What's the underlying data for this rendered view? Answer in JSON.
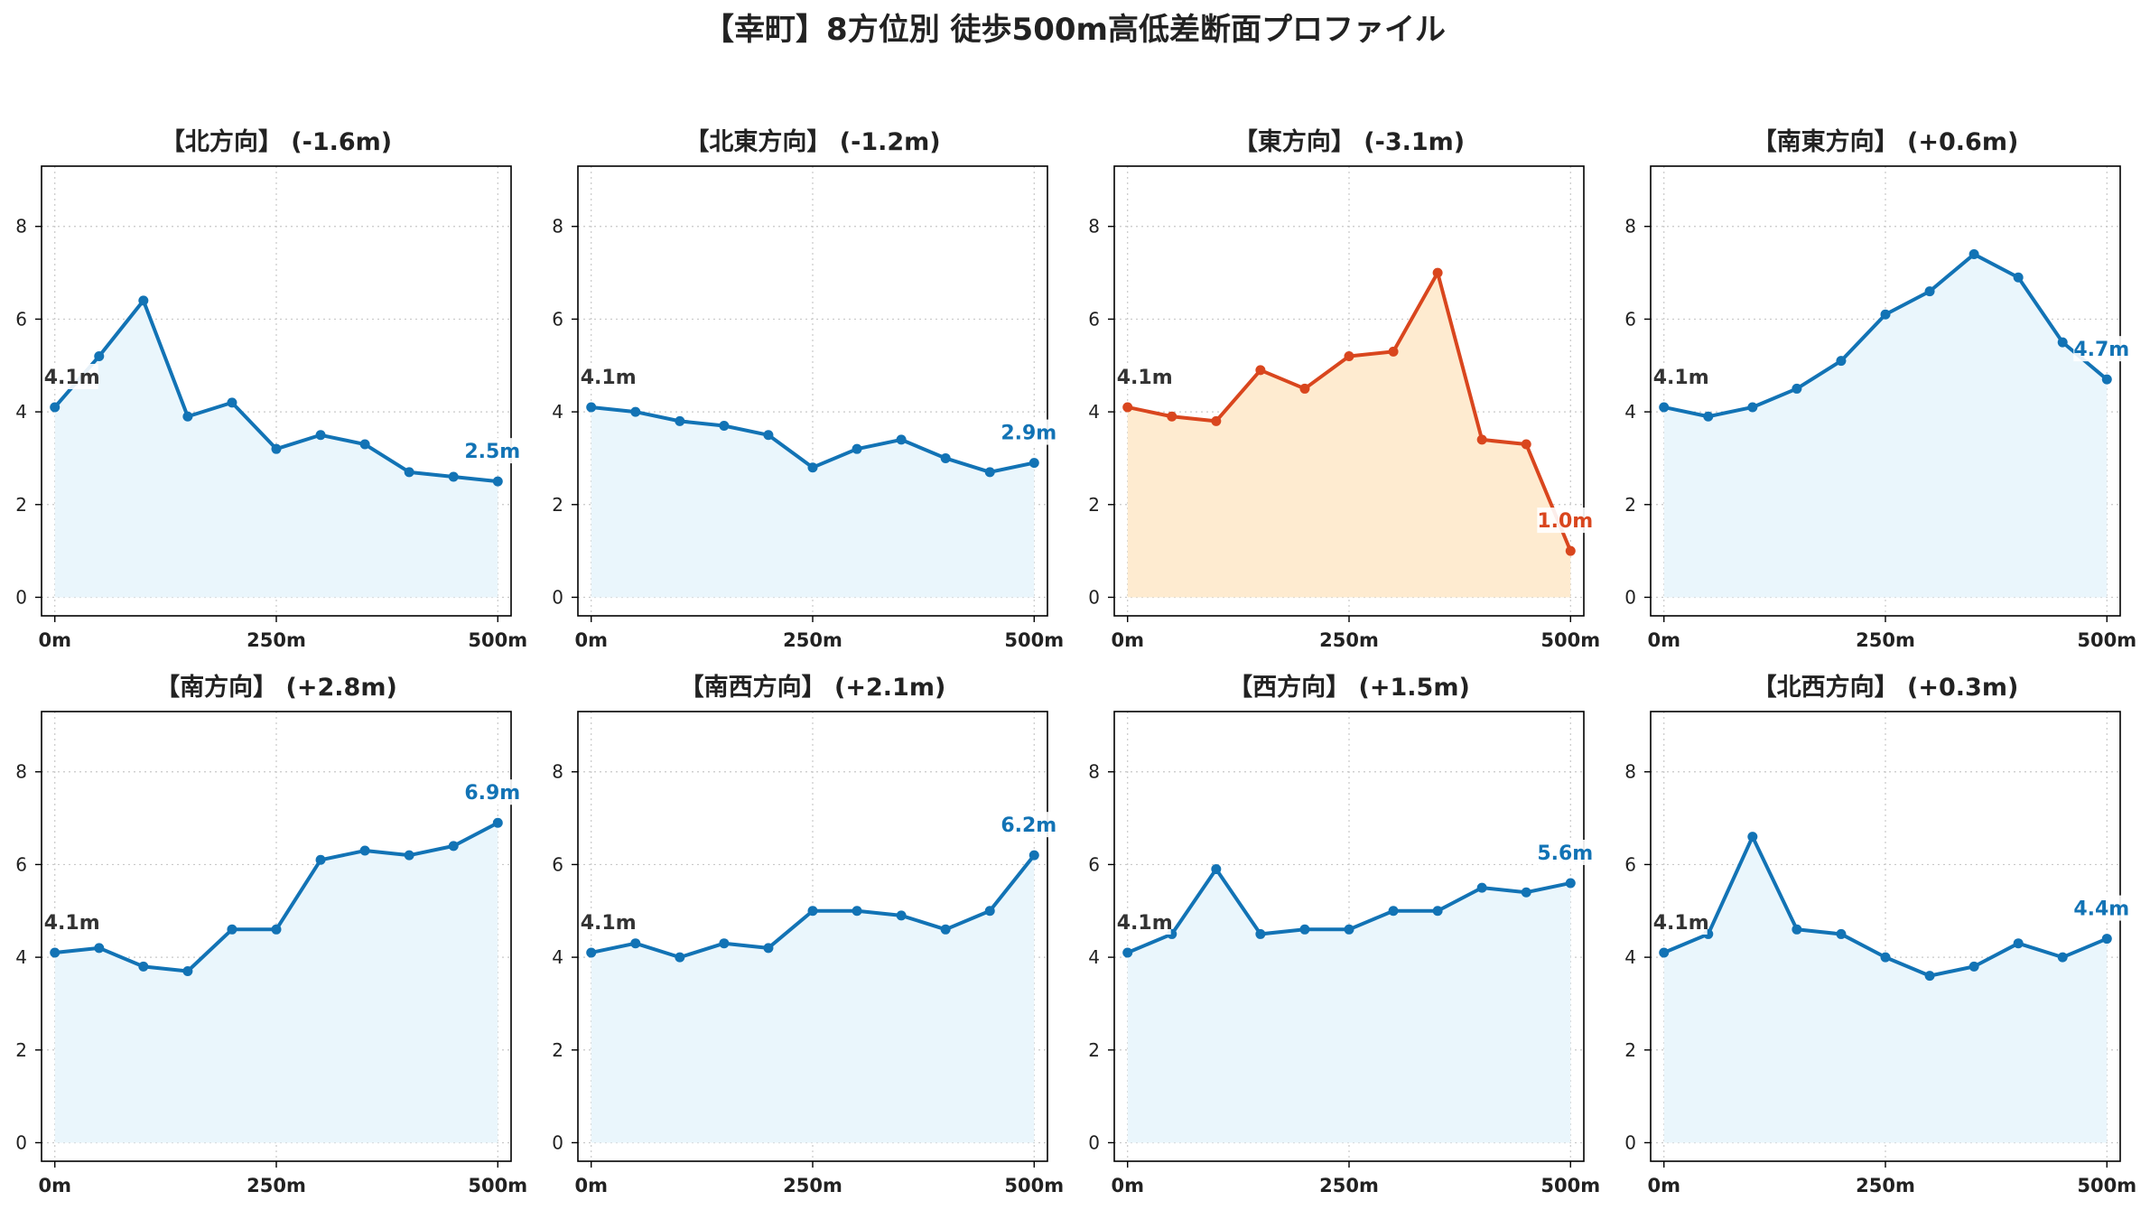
{
  "figure": {
    "title": "【幸町】8方位別 徒歩500m高低差断面プロファイル"
  },
  "colors": {
    "line_default": "#1273b5",
    "fill_default": "#eaf6fc",
    "line_highlight": "#d9461e",
    "fill_highlight": "#feebd0",
    "start_label": "#333333",
    "grid": "#c8c8c8"
  },
  "chart_data": [
    {
      "type": "area",
      "title": "【北方向】 (-1.6m)",
      "x": [
        0,
        50,
        100,
        150,
        200,
        250,
        300,
        350,
        400,
        450,
        500
      ],
      "y": [
        4.1,
        5.2,
        6.4,
        3.9,
        4.2,
        3.2,
        3.5,
        3.3,
        2.7,
        2.6,
        2.5
      ],
      "x_ticks": [
        0,
        250,
        500
      ],
      "x_tick_labels": [
        "0m",
        "250m",
        "500m"
      ],
      "y_ticks": [
        0,
        2,
        4,
        6,
        8
      ],
      "xlim": [
        -15,
        515
      ],
      "ylim": [
        -0.4,
        9.3
      ],
      "start_label": "4.1m",
      "end_label": "2.5m",
      "highlight": false,
      "grid": true
    },
    {
      "type": "area",
      "title": "【北東方向】 (-1.2m)",
      "x": [
        0,
        50,
        100,
        150,
        200,
        250,
        300,
        350,
        400,
        450,
        500
      ],
      "y": [
        4.1,
        4.0,
        3.8,
        3.7,
        3.5,
        2.8,
        3.2,
        3.4,
        3.0,
        2.7,
        2.9
      ],
      "x_ticks": [
        0,
        250,
        500
      ],
      "x_tick_labels": [
        "0m",
        "250m",
        "500m"
      ],
      "y_ticks": [
        0,
        2,
        4,
        6,
        8
      ],
      "xlim": [
        -15,
        515
      ],
      "ylim": [
        -0.4,
        9.3
      ],
      "start_label": "4.1m",
      "end_label": "2.9m",
      "highlight": false,
      "grid": true
    },
    {
      "type": "area",
      "title": "【東方向】 (-3.1m)",
      "x": [
        0,
        50,
        100,
        150,
        200,
        250,
        300,
        350,
        400,
        450,
        500
      ],
      "y": [
        4.1,
        3.9,
        3.8,
        4.9,
        4.5,
        5.2,
        5.3,
        7.0,
        3.4,
        3.3,
        1.0
      ],
      "x_ticks": [
        0,
        250,
        500
      ],
      "x_tick_labels": [
        "0m",
        "250m",
        "500m"
      ],
      "y_ticks": [
        0,
        2,
        4,
        6,
        8
      ],
      "xlim": [
        -15,
        515
      ],
      "ylim": [
        -0.4,
        9.3
      ],
      "start_label": "4.1m",
      "end_label": "1.0m",
      "highlight": true,
      "grid": true
    },
    {
      "type": "area",
      "title": "【南東方向】 (+0.6m)",
      "x": [
        0,
        50,
        100,
        150,
        200,
        250,
        300,
        350,
        400,
        450,
        500
      ],
      "y": [
        4.1,
        3.9,
        4.1,
        4.5,
        5.1,
        6.1,
        6.6,
        7.4,
        6.9,
        5.5,
        4.7
      ],
      "x_ticks": [
        0,
        250,
        500
      ],
      "x_tick_labels": [
        "0m",
        "250m",
        "500m"
      ],
      "y_ticks": [
        0,
        2,
        4,
        6,
        8
      ],
      "xlim": [
        -15,
        515
      ],
      "ylim": [
        -0.4,
        9.3
      ],
      "start_label": "4.1m",
      "end_label": "4.7m",
      "highlight": false,
      "grid": true
    },
    {
      "type": "area",
      "title": "【南方向】 (+2.8m)",
      "x": [
        0,
        50,
        100,
        150,
        200,
        250,
        300,
        350,
        400,
        450,
        500
      ],
      "y": [
        4.1,
        4.2,
        3.8,
        3.7,
        4.6,
        4.6,
        6.1,
        6.3,
        6.2,
        6.4,
        6.9
      ],
      "x_ticks": [
        0,
        250,
        500
      ],
      "x_tick_labels": [
        "0m",
        "250m",
        "500m"
      ],
      "y_ticks": [
        0,
        2,
        4,
        6,
        8
      ],
      "xlim": [
        -15,
        515
      ],
      "ylim": [
        -0.4,
        9.3
      ],
      "start_label": "4.1m",
      "end_label": "6.9m",
      "highlight": false,
      "grid": true
    },
    {
      "type": "area",
      "title": "【南西方向】 (+2.1m)",
      "x": [
        0,
        50,
        100,
        150,
        200,
        250,
        300,
        350,
        400,
        450,
        500
      ],
      "y": [
        4.1,
        4.3,
        4.0,
        4.3,
        4.2,
        5.0,
        5.0,
        4.9,
        4.6,
        5.0,
        6.2
      ],
      "x_ticks": [
        0,
        250,
        500
      ],
      "x_tick_labels": [
        "0m",
        "250m",
        "500m"
      ],
      "y_ticks": [
        0,
        2,
        4,
        6,
        8
      ],
      "xlim": [
        -15,
        515
      ],
      "ylim": [
        -0.4,
        9.3
      ],
      "start_label": "4.1m",
      "end_label": "6.2m",
      "highlight": false,
      "grid": true
    },
    {
      "type": "area",
      "title": "【西方向】 (+1.5m)",
      "x": [
        0,
        50,
        100,
        150,
        200,
        250,
        300,
        350,
        400,
        450,
        500
      ],
      "y": [
        4.1,
        4.5,
        5.9,
        4.5,
        4.6,
        4.6,
        5.0,
        5.0,
        5.5,
        5.4,
        5.6
      ],
      "x_ticks": [
        0,
        250,
        500
      ],
      "x_tick_labels": [
        "0m",
        "250m",
        "500m"
      ],
      "y_ticks": [
        0,
        2,
        4,
        6,
        8
      ],
      "xlim": [
        -15,
        515
      ],
      "ylim": [
        -0.4,
        9.3
      ],
      "start_label": "4.1m",
      "end_label": "5.6m",
      "highlight": false,
      "grid": true
    },
    {
      "type": "area",
      "title": "【北西方向】 (+0.3m)",
      "x": [
        0,
        50,
        100,
        150,
        200,
        250,
        300,
        350,
        400,
        450,
        500
      ],
      "y": [
        4.1,
        4.5,
        6.6,
        4.6,
        4.5,
        4.0,
        3.6,
        3.8,
        4.3,
        4.0,
        4.4
      ],
      "x_ticks": [
        0,
        250,
        500
      ],
      "x_tick_labels": [
        "0m",
        "250m",
        "500m"
      ],
      "y_ticks": [
        0,
        2,
        4,
        6,
        8
      ],
      "xlim": [
        -15,
        515
      ],
      "ylim": [
        -0.4,
        9.3
      ],
      "start_label": "4.1m",
      "end_label": "4.4m",
      "highlight": false,
      "grid": true
    }
  ]
}
